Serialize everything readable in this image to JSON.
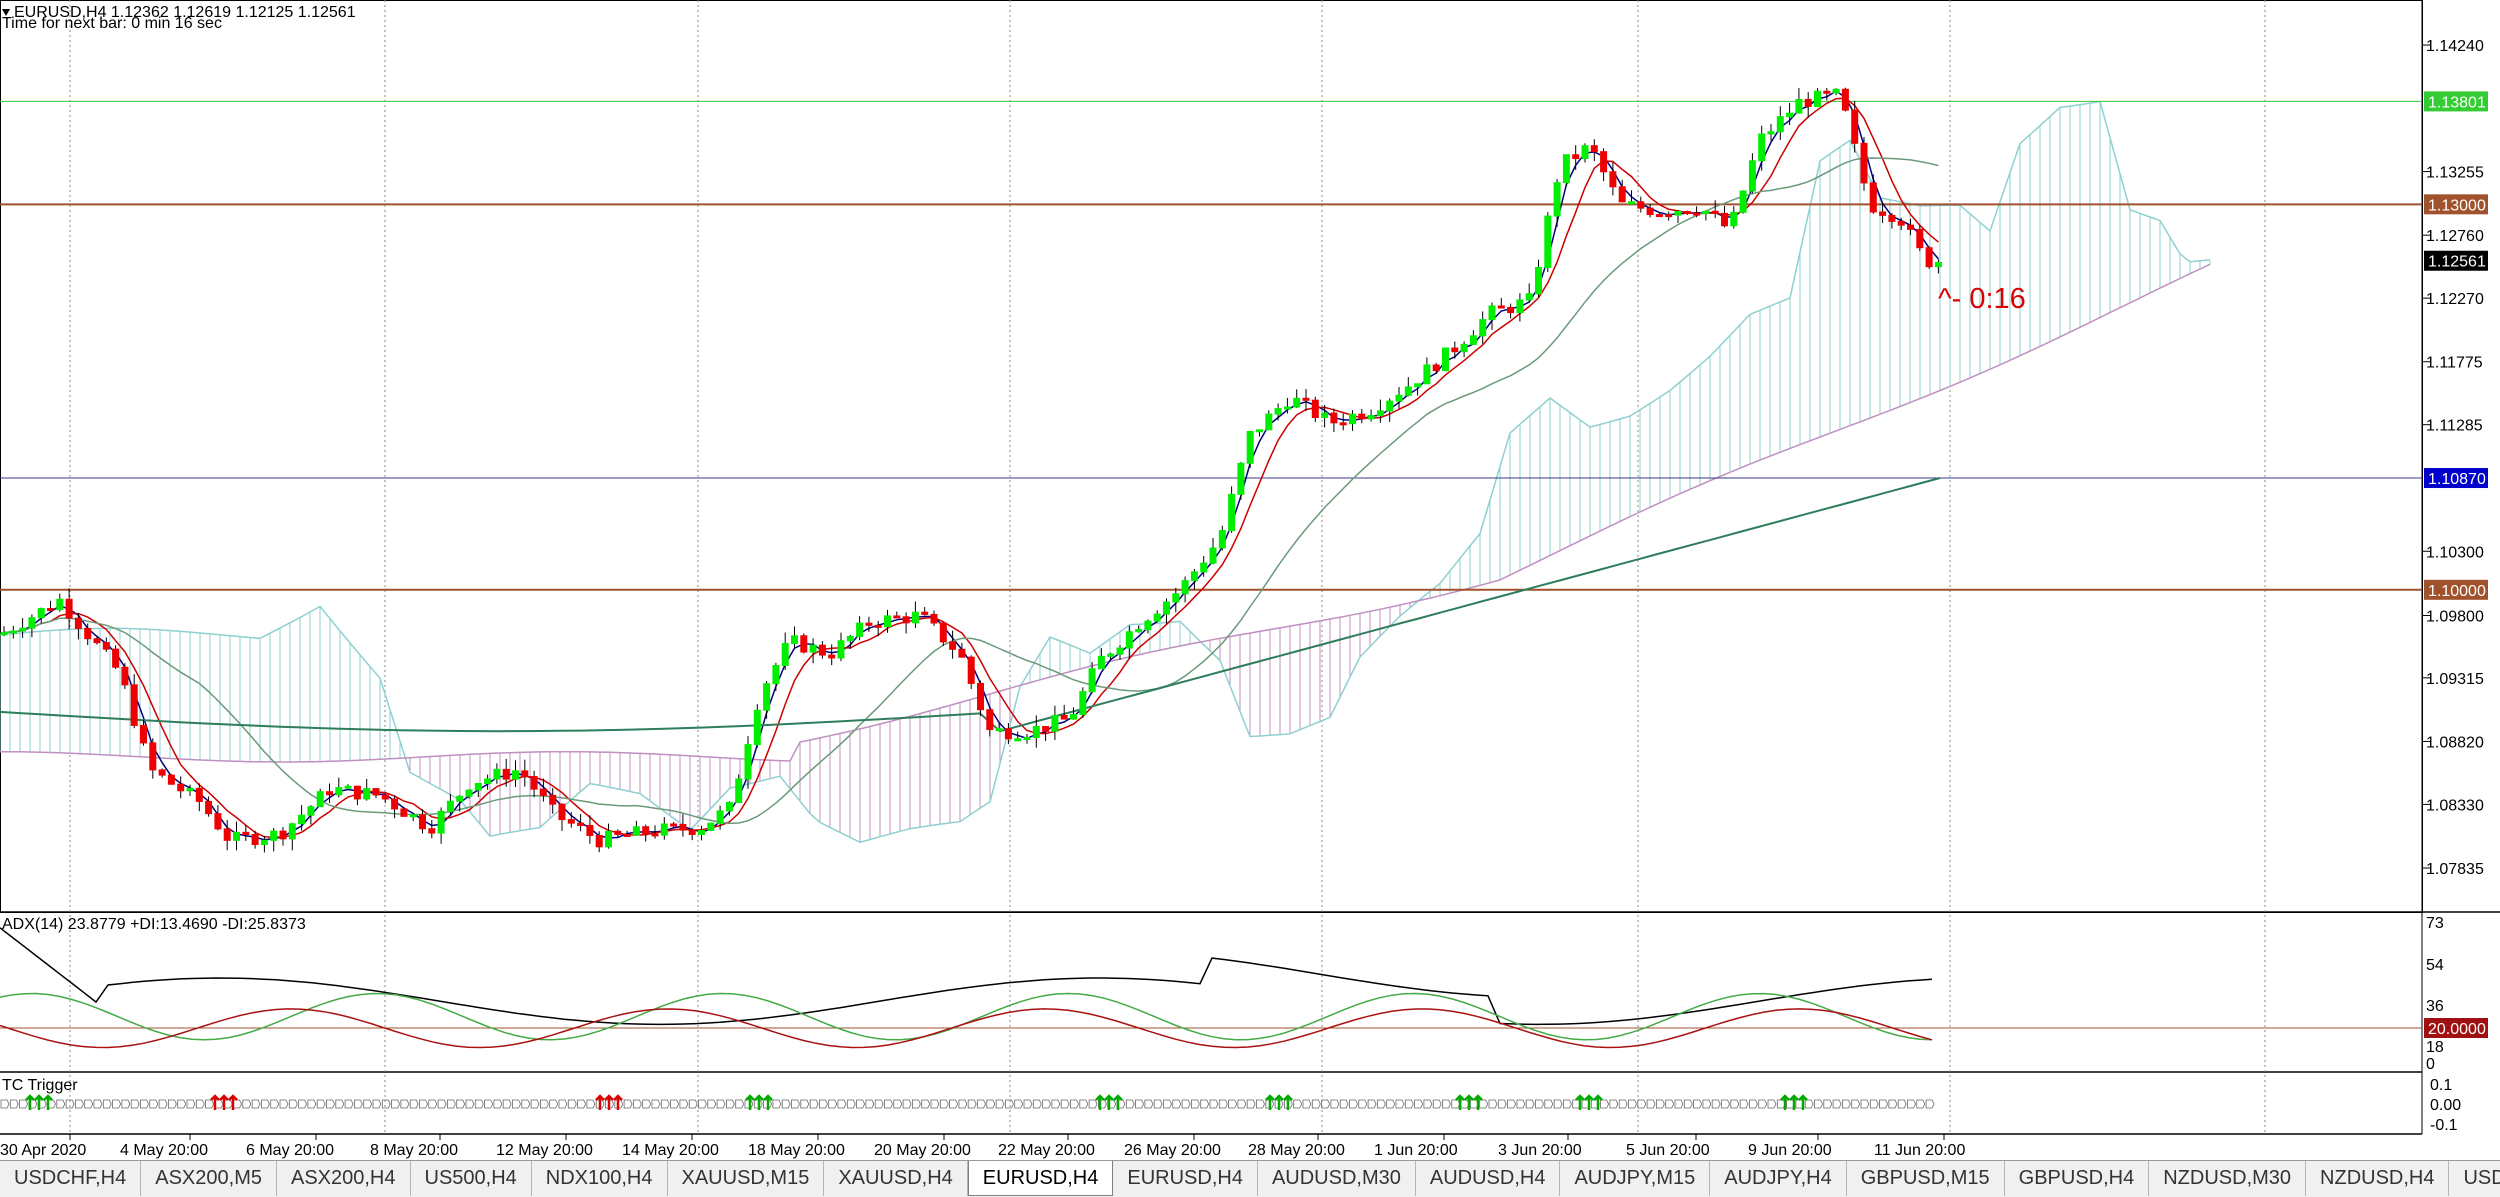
{
  "header": {
    "symbol_line": "EURUSD,H4  1.12362 1.12619 1.12125 1.12561",
    "timer_line": "Time for next bar: 0 min 16 sec"
  },
  "price_scale": {
    "ticks": [
      "1.14240",
      "1.13255",
      "1.12760",
      "1.12270",
      "1.11775",
      "1.11285",
      "1.10300",
      "1.09800",
      "1.09315",
      "1.08820",
      "1.08330",
      "1.07835"
    ],
    "tags": [
      {
        "value": "1.13801",
        "bg": "#33cc33",
        "fg": "#ffffff"
      },
      {
        "value": "1.13000",
        "bg": "#a0522d",
        "fg": "#ffffff"
      },
      {
        "value": "1.12561",
        "bg": "#000000",
        "fg": "#ffffff"
      },
      {
        "value": "1.10870",
        "bg": "#0000cc",
        "fg": "#ffffff"
      },
      {
        "value": "1.10000",
        "bg": "#a0522d",
        "fg": "#ffffff"
      }
    ]
  },
  "countdown": "^- 0:16",
  "adx_panel": {
    "label": "ADX(14) 23.8779 +DI:13.4690 -DI:25.8373",
    "ticks": [
      "73",
      "54",
      "36",
      "18",
      "0"
    ],
    "level_tag": "20.0000"
  },
  "tc_panel": {
    "label": "TC Trigger",
    "ticks": [
      "0.1",
      "0.00",
      "-0.1"
    ]
  },
  "time_axis": [
    "30 Apr 2020",
    "4 May 20:00",
    "6 May 20:00",
    "8 May 20:00",
    "12 May 20:00",
    "14 May 20:00",
    "18 May 20:00",
    "20 May 20:00",
    "22 May 20:00",
    "26 May 20:00",
    "28 May 20:00",
    "1 Jun 20:00",
    "3 Jun 20:00",
    "5 Jun 20:00",
    "9 Jun 20:00",
    "11 Jun 20:00"
  ],
  "tabs": [
    "USDCHF,H4",
    "ASX200,M5",
    "ASX200,H4",
    "US500,H4",
    "NDX100,H4",
    "XAUUSD,M15",
    "XAUUSD,H4",
    "EURUSD,H4",
    "EURUSD,H4",
    "AUDUSD,M30",
    "AUDUSD,H4",
    "AUDJPY,M15",
    "AUDJPY,H4",
    "GBPUSD,M15",
    "GBPUSD,H4",
    "NZDUSD,M30",
    "NZDUSD,H4",
    "USDJP"
  ],
  "active_tab_index": 7,
  "colors": {
    "bull": "#00ee00",
    "bear": "#ee0000",
    "cloud_a": "#8fd0d0",
    "cloud_b": "#c090c0",
    "ma_fast": "#000080",
    "ma_mid": "#cc0000",
    "ma_slow": "#6a9a7a",
    "ma_long": "#2e7d5b"
  }
}
